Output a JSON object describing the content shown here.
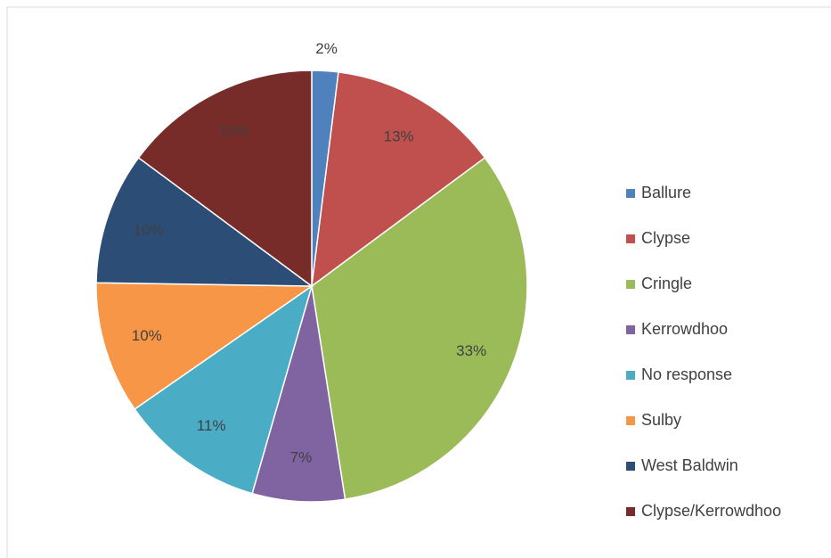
{
  "chart_data": {
    "type": "pie",
    "categories": [
      "Ballure",
      "Clypse",
      "Cringle",
      "Kerrowdhoo",
      "No response",
      "Sulby",
      "West Baldwin",
      "Clypse/Kerrowdhoo"
    ],
    "values": [
      2,
      13,
      33,
      7,
      11,
      10,
      10,
      15
    ],
    "value_labels": [
      "2%",
      "13%",
      "33%",
      "7%",
      "11%",
      "10%",
      "10%",
      "15%"
    ],
    "colors": [
      "#4f81bd",
      "#c0504d",
      "#9bbb59",
      "#8064a2",
      "#4bacc6",
      "#f79646",
      "#2c4d75",
      "#772c2a"
    ],
    "legend": "right"
  }
}
